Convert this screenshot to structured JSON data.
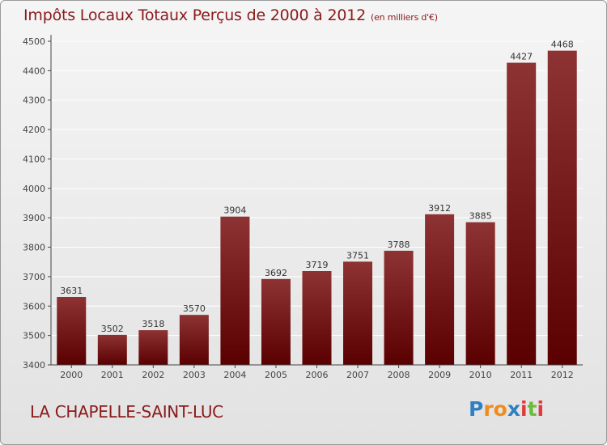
{
  "chart_data": {
    "type": "bar",
    "title": "Impôts Locaux Totaux Perçus de 2000 à 2012",
    "unit_note": "(en milliers d'€)",
    "categories": [
      "2000",
      "2001",
      "2002",
      "2003",
      "2004",
      "2005",
      "2006",
      "2007",
      "2008",
      "2009",
      "2010",
      "2011",
      "2012"
    ],
    "values": [
      3631,
      3502,
      3518,
      3570,
      3904,
      3692,
      3719,
      3751,
      3788,
      3912,
      3885,
      4427,
      4468
    ],
    "y_ticks": [
      3400,
      3500,
      3600,
      3700,
      3800,
      3900,
      4000,
      4100,
      4200,
      4300,
      4400,
      4500
    ],
    "ylim": [
      3400,
      4500
    ],
    "grid": true,
    "bar_color_top": "#8e3333",
    "bar_color_bottom": "#5a0000",
    "xlabel": "",
    "ylabel": ""
  },
  "footer": {
    "city": "LA CHAPELLE-SAINT-LUC",
    "logo_letters": [
      {
        "ch": "P",
        "color": "#2f7fc1"
      },
      {
        "ch": "r",
        "color": "#f08c1e"
      },
      {
        "ch": "o",
        "color": "#f08c1e"
      },
      {
        "ch": "x",
        "color": "#2f7fc1"
      },
      {
        "ch": "i",
        "color": "#e03a3a"
      },
      {
        "ch": "t",
        "color": "#6dbb3c"
      },
      {
        "ch": "i",
        "color": "#e03a3a"
      }
    ]
  },
  "colors": {
    "title": "#8b1a1a",
    "axis": "#444444",
    "grid": "#ffffff"
  }
}
